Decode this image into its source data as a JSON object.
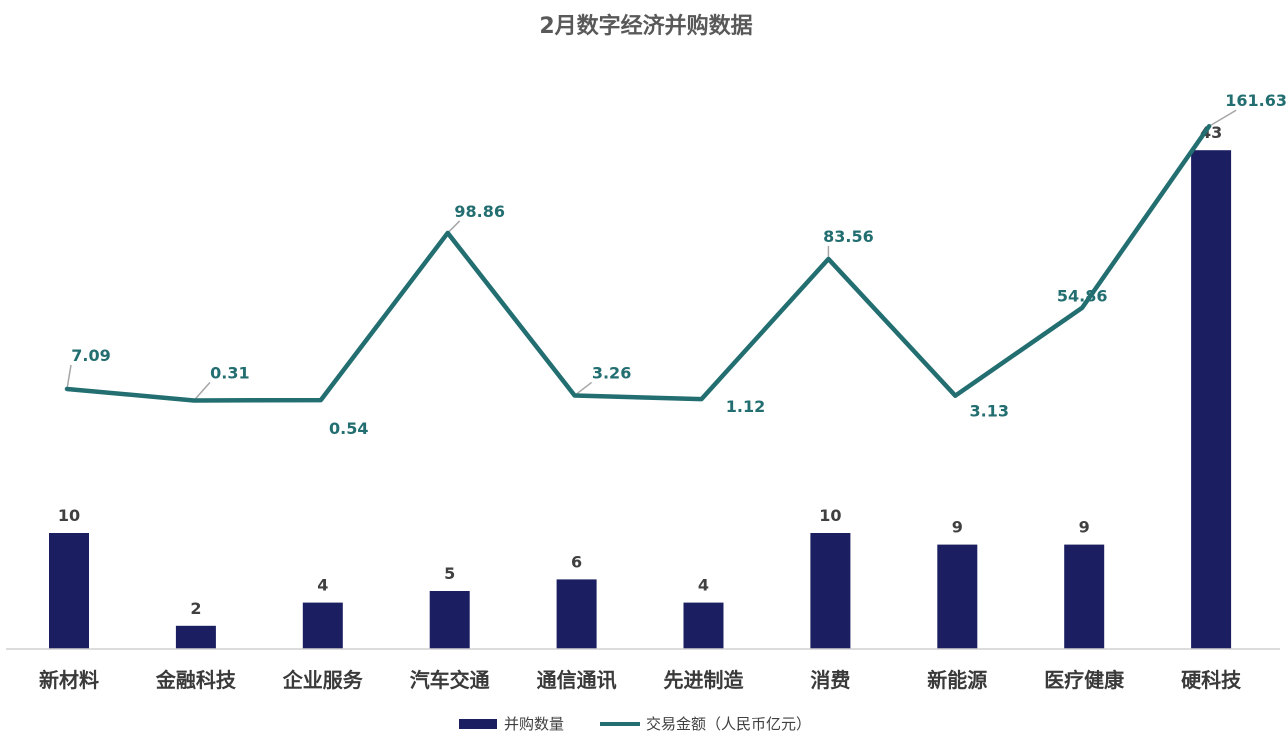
{
  "chart_data": {
    "type": "bar",
    "title": "2月数字经济并购数据",
    "categories": [
      "新材料",
      "金融科技",
      "企业服务",
      "汽车交通",
      "通信通讯",
      "先进制造",
      "消费",
      "新能源",
      "医疗健康",
      "硬科技"
    ],
    "series": [
      {
        "name": "并购数量",
        "type": "bar",
        "values": [
          10,
          2,
          4,
          5,
          6,
          4,
          10,
          9,
          9,
          43
        ],
        "color": "#1b1f62",
        "labels": [
          "10",
          "2",
          "4",
          "5",
          "6",
          "4",
          "10",
          "9",
          "9",
          "43"
        ]
      },
      {
        "name": "交易金额（人民币亿元）",
        "type": "line",
        "values": [
          7.09,
          0.31,
          0.54,
          98.86,
          3.26,
          1.12,
          83.56,
          3.13,
          54.86,
          161.63
        ],
        "color": "#226e70",
        "labels": [
          "7.09",
          "0.31",
          "0.54",
          "98.86",
          "3.26",
          "1.12",
          "83.56",
          "3.13",
          "54.86",
          "161.63"
        ]
      }
    ],
    "legend_position": "bottom",
    "grid": false
  }
}
